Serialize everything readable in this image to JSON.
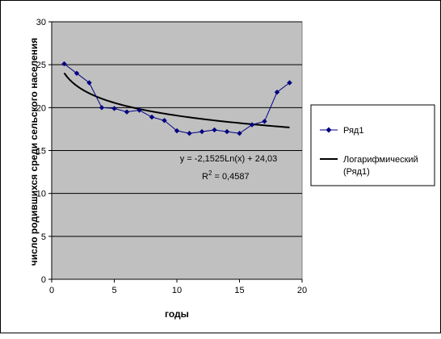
{
  "chart_data": {
    "type": "line",
    "title": "",
    "xlabel": "годы",
    "ylabel": "число родившихся среди сельского населения",
    "xlim": [
      0,
      20
    ],
    "ylim": [
      0,
      30
    ],
    "xticks": [
      0,
      5,
      10,
      15,
      20
    ],
    "yticks": [
      0,
      5,
      10,
      15,
      20,
      25,
      30
    ],
    "x_tick_labels": [
      "0",
      "5",
      "10",
      "15",
      "20"
    ],
    "y_tick_labels": [
      "0",
      "5",
      "10",
      "15",
      "20",
      "25",
      "30"
    ],
    "grid": "horizontal",
    "plot_background": "#c0c0c0",
    "legend_position": "right",
    "series": [
      {
        "name": "Ряд1",
        "color": "#000080",
        "marker": "diamond",
        "x": [
          1,
          2,
          3,
          4,
          5,
          6,
          7,
          8,
          9,
          10,
          11,
          12,
          13,
          14,
          15,
          16,
          17,
          18,
          19
        ],
        "values": [
          25.1,
          24.0,
          22.9,
          20.0,
          19.9,
          19.5,
          19.7,
          18.9,
          18.5,
          17.3,
          17.0,
          17.2,
          17.4,
          17.2,
          17.0,
          18.0,
          18.4,
          21.8,
          22.9
        ]
      }
    ],
    "trendline": {
      "name": "Логарифмический (Ряд1)",
      "legend_lines": [
        "Логарифмический",
        "(Ряд1)"
      ],
      "type": "logarithmic",
      "a": -2.1525,
      "b": 24.03,
      "x_range": [
        1,
        19
      ],
      "color": "#000000",
      "equation_label": "y = -2,1525Ln(x) + 24,03",
      "r2_prefix": "R",
      "r2_exponent": "2",
      "r2_value": " = 0,4587"
    }
  }
}
